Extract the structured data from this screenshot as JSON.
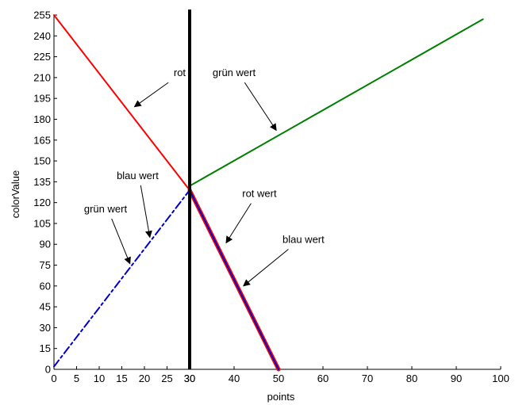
{
  "chart_data": {
    "type": "line",
    "xlabel": "points",
    "ylabel": "colorValue",
    "y_ticks": [
      0,
      15,
      30,
      45,
      60,
      75,
      90,
      105,
      120,
      135,
      150,
      165,
      180,
      195,
      210,
      225,
      240,
      255
    ],
    "left_panel": {
      "xlim": [
        0,
        30
      ],
      "x_ticks": [
        0,
        5,
        10,
        15,
        20,
        25,
        30
      ]
    },
    "right_panel": {
      "xlim": [
        30,
        100
      ],
      "x_ticks": [
        30,
        40,
        50,
        60,
        70,
        80,
        90,
        100
      ]
    },
    "ylim": [
      0,
      255
    ],
    "grid": false,
    "divider_x": 30,
    "series": [
      {
        "id": "red-left",
        "panel": "left",
        "color": "#ff0000",
        "style": "solid",
        "x": [
          0,
          30
        ],
        "y": [
          255,
          129
        ]
      },
      {
        "id": "blue-green-left",
        "panel": "left",
        "color": "#0000cc",
        "style": "dashdot",
        "x": [
          0,
          30
        ],
        "y": [
          2,
          129
        ]
      },
      {
        "id": "green-right",
        "panel": "right",
        "color": "#008000",
        "style": "solid",
        "x": [
          30,
          96
        ],
        "y": [
          132,
          252
        ]
      },
      {
        "id": "red-right",
        "panel": "right",
        "color": "#ff0000",
        "style": "solid-thick",
        "x": [
          30,
          50
        ],
        "y": [
          129,
          0
        ]
      },
      {
        "id": "blue-right",
        "panel": "right",
        "color": "#0000cc",
        "style": "solid",
        "x": [
          30,
          50
        ],
        "y": [
          129,
          0
        ]
      }
    ],
    "annotations": [
      {
        "id": "rot",
        "text": "rot",
        "panel": "left",
        "text_xy": [
          27.8,
          211
        ],
        "arrow_to": [
          17.8,
          189
        ]
      },
      {
        "id": "gruen-wert-top",
        "text": "grün wert",
        "panel": "right",
        "text_xy": [
          40,
          211
        ],
        "arrow_to": [
          49.5,
          172
        ]
      },
      {
        "id": "blau-wert-left",
        "text": "blau wert",
        "panel": "left",
        "text_xy": [
          18.5,
          137
        ],
        "arrow_to": [
          21.2,
          95
        ]
      },
      {
        "id": "gruen-wert-left",
        "text": "grün wert",
        "panel": "left",
        "text_xy": [
          11.4,
          113
        ],
        "arrow_to": [
          16.8,
          76
        ]
      },
      {
        "id": "rot-wert",
        "text": "rot wert",
        "panel": "right",
        "text_xy": [
          45.7,
          124
        ],
        "arrow_to": [
          38.2,
          91
        ]
      },
      {
        "id": "blau-wert-right",
        "text": "blau wert",
        "panel": "right",
        "text_xy": [
          55.6,
          91
        ],
        "arrow_to": [
          42.1,
          60
        ]
      }
    ]
  }
}
